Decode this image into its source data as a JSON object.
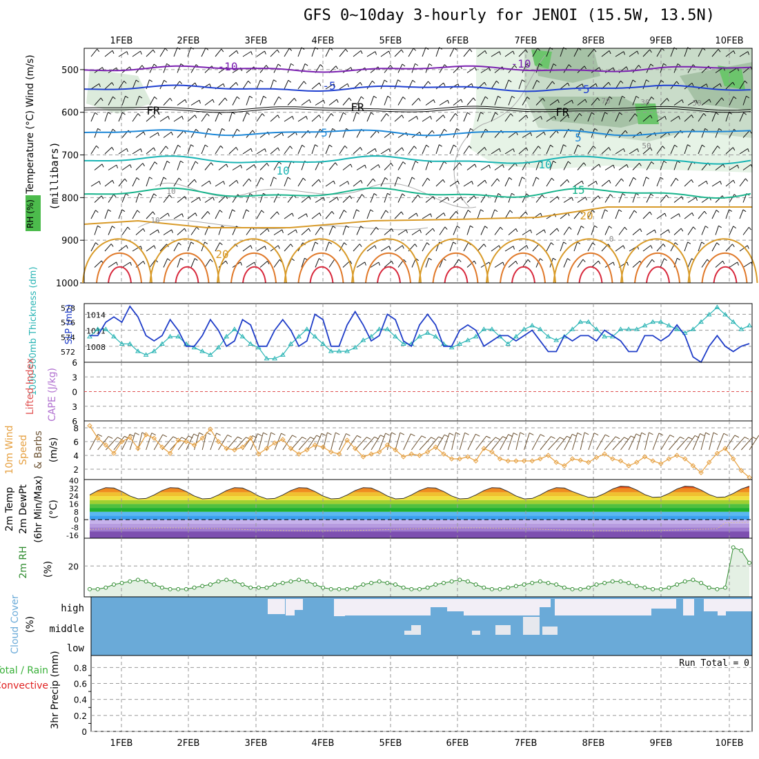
{
  "title": "GFS 0~10day 3-hourly for JENOI (15.5W, 13.5N)",
  "dates": [
    "1FEB",
    "2FEB",
    "3FEB",
    "4FEB",
    "5FEB",
    "6FEB",
    "7FEB",
    "8FEB",
    "9FEB",
    "10FEB"
  ],
  "colors": {
    "grid": "#aaaaaa",
    "slp": "#1e3cc8",
    "thickness": "#28b4b4",
    "wind": "#e6a040",
    "rh": "#2e8b2e",
    "cloud": "#6aaad8",
    "lifted": "#e05050"
  },
  "chart_data": [
    {
      "id": "upper-panel",
      "type": "contour",
      "ylabel": "Temperature (°C) Wind (m/s)",
      "ylabel2": "(millibars)",
      "legend": "RH (%)",
      "y_ticks": [
        500,
        600,
        700,
        800,
        900,
        1000
      ],
      "ylim": [
        450,
        1000
      ],
      "isotherm_labels": [
        {
          "text": "-10",
          "color": "#7a1fb0"
        },
        {
          "text": "-10",
          "color": "#7a1fb0"
        },
        {
          "text": "-5",
          "color": "#1f3fd0"
        },
        {
          "text": "-5",
          "color": "#1f3fd0"
        },
        {
          "text": "FR",
          "color": "#000000"
        },
        {
          "text": "FR",
          "color": "#000000"
        },
        {
          "text": "FR",
          "color": "#000000"
        },
        {
          "text": "5",
          "color": "#1e88d8"
        },
        {
          "text": "5",
          "color": "#1e88d8"
        },
        {
          "text": "10",
          "color": "#18b4b4"
        },
        {
          "text": "10",
          "color": "#18b4b4"
        },
        {
          "text": "15",
          "color": "#18b48c"
        },
        {
          "text": "20",
          "color": "#d89a28"
        },
        {
          "text": "20",
          "color": "#d89a28"
        },
        {
          "text": "30",
          "color": "#888888"
        },
        {
          "text": "50",
          "color": "#888888"
        },
        {
          "text": "50",
          "color": "#888888"
        },
        {
          "text": "70",
          "color": "#888888"
        },
        {
          "text": "10",
          "color": "#888888"
        },
        {
          "text": "10",
          "color": "#888888"
        },
        {
          "text": "0",
          "color": "#888888"
        }
      ]
    },
    {
      "id": "slp-thickness",
      "type": "line",
      "ylabel": "1000-500mb Thickness (dm)",
      "ylabel2": "SLP (mb)",
      "thickness_ticks": [
        578,
        576,
        574,
        572
      ],
      "slp_ticks": [
        1014,
        1011,
        1008
      ],
      "thickness_lim": [
        570.5,
        578.5
      ],
      "slp_lim": [
        1005,
        1016
      ],
      "series": [
        {
          "key": "slp",
          "values": [
            1010,
            1010,
            1012.5,
            1013.5,
            1012.5,
            1015.5,
            1013.5,
            1010,
            1009,
            1010,
            1013,
            1011,
            1008,
            1008,
            1010,
            1013,
            1011,
            1008,
            1009,
            1013,
            1012,
            1008,
            1008,
            1011,
            1013,
            1011,
            1008,
            1009,
            1014,
            1013,
            1008,
            1008,
            1012,
            1014.5,
            1012,
            1009,
            1010,
            1014,
            1013,
            1009,
            1008,
            1012,
            1014,
            1012,
            1008,
            1008,
            1011,
            1012,
            1011,
            1008,
            1009,
            1010,
            1010,
            1009,
            1010,
            1011,
            1009,
            1007,
            1007,
            1010,
            1009,
            1010,
            1010,
            1009,
            1011,
            1010,
            1009,
            1007,
            1007,
            1010,
            1010,
            1009,
            1010,
            1012,
            1010,
            1006,
            1005,
            1008,
            1010,
            1008,
            1007,
            1008,
            1008.5
          ]
        },
        {
          "key": "thickness",
          "values": [
            574,
            575,
            575,
            574,
            573,
            573,
            572,
            571.5,
            572,
            573,
            574,
            574,
            573,
            572.5,
            572,
            571.5,
            572.5,
            574,
            575,
            574,
            573,
            572.5,
            571,
            571,
            571.5,
            573,
            574,
            575,
            574,
            573,
            572,
            572,
            572,
            572.5,
            573.5,
            574,
            575,
            575,
            574,
            573,
            573,
            574,
            574.5,
            574,
            573,
            572.5,
            573,
            573.5,
            574,
            575,
            575,
            574,
            573,
            574,
            575,
            575.5,
            575,
            574,
            573.5,
            574,
            575,
            576,
            576,
            575,
            574,
            574,
            575,
            575,
            575,
            575.5,
            576,
            576,
            575.5,
            575,
            574.5,
            575,
            576,
            577,
            578,
            577,
            576,
            575,
            575.5
          ]
        }
      ]
    },
    {
      "id": "lifted-cape",
      "type": "line",
      "ylabel": "Lifted Index",
      "ylabel2": "CAPE (J/kg)",
      "y_ticks": [
        -6,
        -3,
        0,
        3,
        6
      ],
      "y_tick_labels": [
        "6",
        "3",
        "0",
        "3",
        "6"
      ],
      "ylim": [
        -6,
        6
      ]
    },
    {
      "id": "wind-10m",
      "type": "line",
      "ylabel": "10m Wind",
      "ylabel2": "Speed",
      "ylabel3": "& Barbs",
      "yunit": "(m/s)",
      "y_ticks": [
        2,
        4,
        6,
        8
      ],
      "ylim": [
        0.5,
        9
      ],
      "values": [
        8.3,
        6.5,
        5.5,
        4.3,
        6,
        6.6,
        5,
        7,
        6.5,
        5.2,
        4.3,
        6.2,
        6,
        5.5,
        6.5,
        7.8,
        6,
        5,
        4.8,
        5.2,
        6.5,
        4.2,
        5,
        5.8,
        6.3,
        5,
        4.2,
        4.8,
        5.5,
        5.2,
        4.5,
        4.2,
        6.2,
        5,
        3.8,
        4.2,
        4.5,
        5.5,
        4.8,
        3.8,
        4.2,
        4,
        4.5,
        5.2,
        4.2,
        3.5,
        3.5,
        3.8,
        3.2,
        5,
        4.5,
        3.5,
        3.2,
        3.2,
        3.2,
        3.2,
        3.5,
        4,
        3,
        2.5,
        3.5,
        3.3,
        3,
        3.7,
        4.2,
        3.5,
        3.2,
        2.5,
        3,
        3.8,
        3.2,
        2.8,
        3.5,
        4,
        3.5,
        2.5,
        1.5,
        3,
        4.3,
        5,
        3.5,
        1.8,
        0.8
      ]
    },
    {
      "id": "temp-2m",
      "type": "area",
      "ylabel": "2m Temp",
      "ylabel2": "2m DewPt",
      "ylabel3": "(6hr Min/Max)",
      "yunit": "(°C)",
      "y_ticks": [
        40,
        32,
        24,
        16,
        8,
        0,
        -8,
        -16
      ],
      "ylim": [
        -19,
        41
      ]
    },
    {
      "id": "rh-2m",
      "type": "area",
      "ylabel": "2m RH",
      "yunit": "(%)",
      "y_ticks": [
        20
      ],
      "ylim": [
        0,
        38
      ],
      "values": [
        5,
        5,
        6,
        8,
        9,
        10,
        11,
        10,
        8,
        6,
        5,
        5,
        5,
        6,
        7,
        8,
        10,
        11,
        10,
        8,
        6,
        6,
        6,
        8,
        9,
        10,
        11,
        10,
        8,
        6,
        5,
        5,
        5,
        6,
        8,
        9,
        10,
        9,
        8,
        6,
        5,
        5,
        6,
        8,
        9,
        10,
        11,
        10,
        8,
        6,
        5,
        5,
        6,
        7,
        8,
        9,
        10,
        9,
        8,
        6,
        5,
        5,
        6,
        8,
        9,
        10,
        10,
        9,
        7,
        6,
        5,
        5,
        6,
        8,
        10,
        11,
        9,
        6,
        5,
        6,
        32,
        30,
        22
      ]
    },
    {
      "id": "cloud-cover",
      "type": "heatmap",
      "ylabel": "Cloud Cover",
      "yunit": "(%)",
      "rows": [
        "high",
        "middle",
        "low"
      ]
    },
    {
      "id": "precip",
      "type": "bar",
      "ylabel": "3hr Precip (mm)",
      "legend": [
        "Total / Rain",
        "Convective"
      ],
      "y_ticks": [
        0,
        0.2,
        0.4,
        0.6,
        0.8
      ],
      "ylim": [
        0,
        0.95
      ],
      "run_total": "Run Total = 0"
    }
  ]
}
